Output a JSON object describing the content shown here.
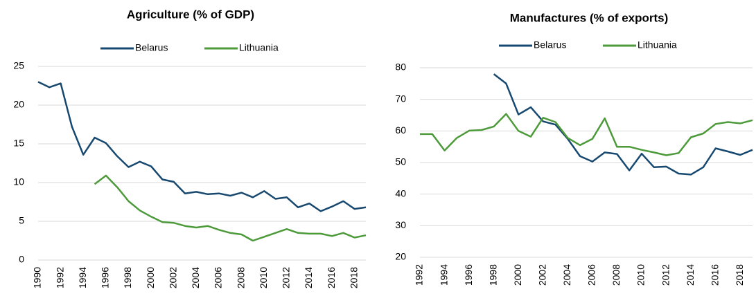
{
  "chart_data": [
    {
      "type": "line",
      "title": "Agriculture (% of GDP)",
      "x": [
        1990,
        1991,
        1992,
        1993,
        1994,
        1995,
        1996,
        1997,
        1998,
        1999,
        2000,
        2001,
        2002,
        2003,
        2004,
        2005,
        2006,
        2007,
        2008,
        2009,
        2010,
        2011,
        2012,
        2013,
        2014,
        2015,
        2016,
        2017,
        2018,
        2019
      ],
      "series": [
        {
          "name": "Belarus",
          "color": "#17486f",
          "values": [
            23.0,
            22.3,
            22.8,
            17.2,
            13.6,
            15.8,
            15.1,
            13.4,
            12.0,
            12.7,
            12.1,
            10.4,
            10.1,
            8.6,
            8.8,
            8.5,
            8.6,
            8.3,
            8.7,
            8.1,
            8.9,
            7.9,
            8.1,
            6.8,
            7.3,
            6.3,
            6.9,
            7.6,
            6.6,
            6.8
          ]
        },
        {
          "name": "Lithuania",
          "color": "#4d9a3a",
          "values": [
            null,
            null,
            null,
            null,
            null,
            9.8,
            10.9,
            9.4,
            7.6,
            6.4,
            5.6,
            4.9,
            4.8,
            4.4,
            4.2,
            4.4,
            3.9,
            3.5,
            3.3,
            2.5,
            3.0,
            3.5,
            4.0,
            3.5,
            3.4,
            3.4,
            3.1,
            3.5,
            2.9,
            3.2
          ]
        }
      ],
      "xlim": [
        1990,
        2019
      ],
      "xticks": [
        1990,
        1992,
        1994,
        1996,
        1998,
        2000,
        2002,
        2004,
        2006,
        2008,
        2010,
        2012,
        2014,
        2016,
        2018
      ],
      "ylim": [
        0,
        25
      ],
      "yticks": [
        0,
        5,
        10,
        15,
        20,
        25
      ],
      "grid": true,
      "legend": "top"
    },
    {
      "type": "line",
      "title": "Manufactures (% of exports)",
      "x": [
        1992,
        1993,
        1994,
        1995,
        1996,
        1997,
        1998,
        1999,
        2000,
        2001,
        2002,
        2003,
        2004,
        2005,
        2006,
        2007,
        2008,
        2009,
        2010,
        2011,
        2012,
        2013,
        2014,
        2015,
        2016,
        2017,
        2018,
        2019
      ],
      "series": [
        {
          "name": "Belarus",
          "color": "#17486f",
          "values": [
            null,
            null,
            null,
            null,
            null,
            null,
            78.0,
            75.0,
            65.2,
            67.5,
            63.0,
            62.0,
            57.5,
            52.0,
            50.3,
            53.2,
            52.7,
            47.5,
            52.8,
            48.5,
            48.7,
            46.5,
            46.2,
            48.5,
            54.5,
            53.5,
            52.4,
            54.0
          ]
        },
        {
          "name": "Lithuania",
          "color": "#4d9a3a",
          "values": [
            59.0,
            59.0,
            53.8,
            57.8,
            60.1,
            60.3,
            61.4,
            65.4,
            60.0,
            58.2,
            64.2,
            62.8,
            57.8,
            55.5,
            57.5,
            64.0,
            55.0,
            55.0,
            54.0,
            53.2,
            52.3,
            53.0,
            58.0,
            59.2,
            62.2,
            62.8,
            62.4,
            63.4
          ]
        }
      ],
      "xlim": [
        1992,
        2019
      ],
      "xticks": [
        1992,
        1994,
        1996,
        1998,
        2000,
        2002,
        2004,
        2006,
        2008,
        2010,
        2012,
        2014,
        2016,
        2018
      ],
      "ylim": [
        20,
        80
      ],
      "yticks": [
        20,
        30,
        40,
        50,
        60,
        70,
        80
      ],
      "grid": true,
      "legend": "top"
    }
  ]
}
